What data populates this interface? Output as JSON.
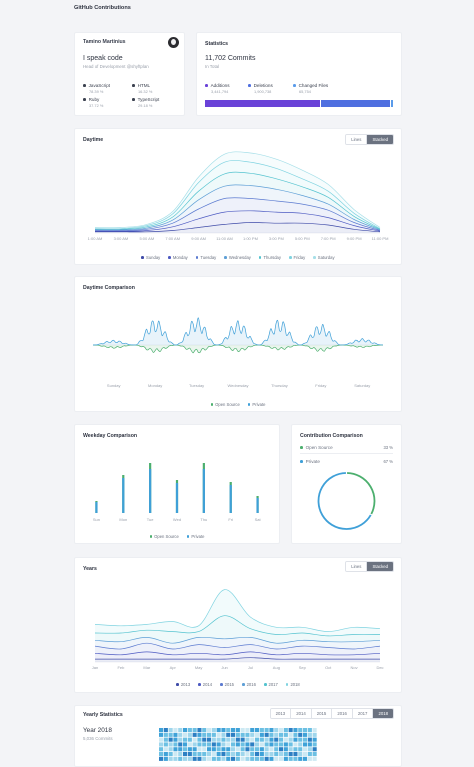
{
  "page_title": "GitHub Contributions",
  "profile": {
    "name": "Tamino Martinius",
    "tagline": "I speak code",
    "role": "Head of Development @shyftplan",
    "languages": [
      {
        "name": "JavaScript",
        "pct": "78.39 %"
      },
      {
        "name": "HTML",
        "pct": "16.32 %"
      },
      {
        "name": "Ruby",
        "pct": "37.72 %"
      },
      {
        "name": "TypeScript",
        "pct": "29.18 %"
      }
    ]
  },
  "statistics": {
    "title": "Statistics",
    "commits_number": "11,702",
    "commits_label": "Commits",
    "subtitle": "In Total",
    "items": [
      {
        "label": "Additions",
        "value": "3,441,794"
      },
      {
        "label": "Deletions",
        "value": "1,900,738"
      },
      {
        "label": "Changed Files",
        "value": "65,754"
      }
    ],
    "bar_fractions": [
      0.62,
      0.37,
      0.01
    ],
    "bar_colors": [
      "#6a42d8",
      "#4f6fe0",
      "#5a9bea"
    ]
  },
  "daytime": {
    "title": "Daytime",
    "toggle": [
      "Lines",
      "Stacked"
    ],
    "active": "Stacked",
    "legend": [
      "Sunday",
      "Monday",
      "Tuesday",
      "Wednesday",
      "Thursday",
      "Friday",
      "Saturday"
    ],
    "legend_colors": [
      "#3f4ba8",
      "#4d5ac2",
      "#5b7ad0",
      "#5e9fd6",
      "#54c3cf",
      "#7fd3e0",
      "#a6dfe8"
    ]
  },
  "daytime_comparison": {
    "title": "Daytime Comparison",
    "days": [
      "Sunday",
      "Monday",
      "Tuesday",
      "Wednesday",
      "Thursday",
      "Friday",
      "Saturday"
    ],
    "legend": [
      "Open Source",
      "Private"
    ],
    "colors": [
      "#4caf6e",
      "#3fa0d8"
    ]
  },
  "weekday_comparison": {
    "title": "Weekday Comparison",
    "legend": [
      "Open Source",
      "Private"
    ]
  },
  "contribution_comparison": {
    "title": "Contribution Comparison",
    "rows": [
      {
        "label": "Open Source",
        "pct": "33 %"
      },
      {
        "label": "Private",
        "pct": "67 %"
      }
    ]
  },
  "years": {
    "title": "Years",
    "toggle": [
      "Lines",
      "Stacked"
    ],
    "active": "Stacked",
    "legend": [
      "2013",
      "2014",
      "2015",
      "2016",
      "2017",
      "2018"
    ],
    "legend_colors": [
      "#3f4ba8",
      "#4d5ac2",
      "#5b7ad0",
      "#5e9fd6",
      "#54c3cf",
      "#7fd3e0"
    ]
  },
  "yearly_statistics": {
    "title": "Yearly Statistics",
    "tabs": [
      "2013",
      "2014",
      "2015",
      "2016",
      "2017",
      "2018"
    ],
    "active": "2018",
    "year_label": "Year 2018",
    "commits": "5,036 Commits"
  },
  "chart_data": [
    {
      "type": "area",
      "title": "Daytime",
      "stacked": true,
      "categories": [
        "1:00 AM",
        "3:00 AM",
        "5:00 AM",
        "7:00 AM",
        "9:00 AM",
        "11:00 AM",
        "1:00 PM",
        "3:00 PM",
        "5:00 PM",
        "7:00 PM",
        "9:00 PM",
        "11:00 PM"
      ],
      "series": [
        {
          "name": "Sunday",
          "values": [
            0.2,
            0.2,
            0.2,
            0.4,
            0.9,
            1.4,
            1.7,
            1.6,
            1.6,
            1.3,
            0.6,
            0.2
          ]
        },
        {
          "name": "Monday",
          "values": [
            0.1,
            0.1,
            0.2,
            0.6,
            1.4,
            2.0,
            1.9,
            1.8,
            1.6,
            1.2,
            0.6,
            0.1
          ]
        },
        {
          "name": "Tuesday",
          "values": [
            0.1,
            0.1,
            0.2,
            0.6,
            1.6,
            2.2,
            2.0,
            1.8,
            1.5,
            1.2,
            0.5,
            0.1
          ]
        },
        {
          "name": "Wednesday",
          "values": [
            0.1,
            0.1,
            0.2,
            0.5,
            1.5,
            2.0,
            2.1,
            1.9,
            1.4,
            1.0,
            0.5,
            0.1
          ]
        },
        {
          "name": "Thursday",
          "values": [
            0.1,
            0.1,
            0.2,
            0.5,
            1.4,
            2.0,
            2.0,
            1.7,
            1.4,
            1.1,
            0.5,
            0.1
          ]
        },
        {
          "name": "Friday",
          "values": [
            0.1,
            0.1,
            0.2,
            0.5,
            1.4,
            1.9,
            1.8,
            1.7,
            1.3,
            1.0,
            0.5,
            0.1
          ]
        },
        {
          "name": "Saturday",
          "values": [
            0.2,
            0.2,
            0.2,
            0.4,
            0.9,
            1.3,
            1.5,
            1.5,
            1.4,
            1.1,
            0.6,
            0.2
          ]
        }
      ]
    },
    {
      "type": "line",
      "title": "Daytime Comparison",
      "categories": [
        "Sunday",
        "Monday",
        "Tuesday",
        "Wednesday",
        "Thursday",
        "Friday",
        "Saturday"
      ],
      "series": [
        {
          "name": "Open Source",
          "values": [
            0.4,
            0.9,
            1.0,
            0.8,
            0.6,
            0.8,
            0.3
          ]
        },
        {
          "name": "Private",
          "values": [
            0.3,
            1.6,
            1.7,
            1.5,
            1.6,
            1.3,
            0.4
          ]
        }
      ]
    },
    {
      "type": "bar",
      "title": "Weekday Comparison",
      "categories": [
        "Sun",
        "Mon",
        "Tue",
        "Wed",
        "Thu",
        "Fri",
        "Sat"
      ],
      "series": [
        {
          "name": "Open Source",
          "values": [
            11,
            35,
            44,
            30,
            44,
            28,
            15
          ]
        },
        {
          "name": "Private",
          "values": [
            12,
            38,
            50,
            33,
            50,
            31,
            17
          ]
        }
      ]
    },
    {
      "type": "pie",
      "title": "Contribution Comparison",
      "categories": [
        "Open Source",
        "Private"
      ],
      "values": [
        33,
        67
      ]
    },
    {
      "type": "area",
      "title": "Years",
      "stacked": true,
      "categories": [
        "Jan",
        "Feb",
        "Mar",
        "Apr",
        "May",
        "Jun",
        "Jul",
        "Aug",
        "Sep",
        "Oct",
        "Nov",
        "Dec"
      ],
      "series": [
        {
          "name": "2013",
          "values": [
            2,
            2,
            2,
            2,
            2,
            2,
            3,
            2,
            2,
            2,
            2,
            2
          ]
        },
        {
          "name": "2014",
          "values": [
            4,
            3,
            5,
            3,
            4,
            3,
            4,
            3,
            4,
            3,
            3,
            4
          ]
        },
        {
          "name": "2015",
          "values": [
            5,
            4,
            6,
            4,
            6,
            5,
            5,
            4,
            5,
            5,
            4,
            5
          ]
        },
        {
          "name": "2016",
          "values": [
            4,
            5,
            4,
            4,
            5,
            6,
            5,
            4,
            4,
            4,
            5,
            4
          ]
        },
        {
          "name": "2017",
          "values": [
            5,
            6,
            5,
            8,
            4,
            16,
            6,
            6,
            5,
            4,
            5,
            4
          ]
        },
        {
          "name": "2018",
          "values": [
            6,
            5,
            4,
            7,
            4,
            18,
            8,
            5,
            4,
            3,
            5,
            4
          ]
        }
      ]
    }
  ]
}
